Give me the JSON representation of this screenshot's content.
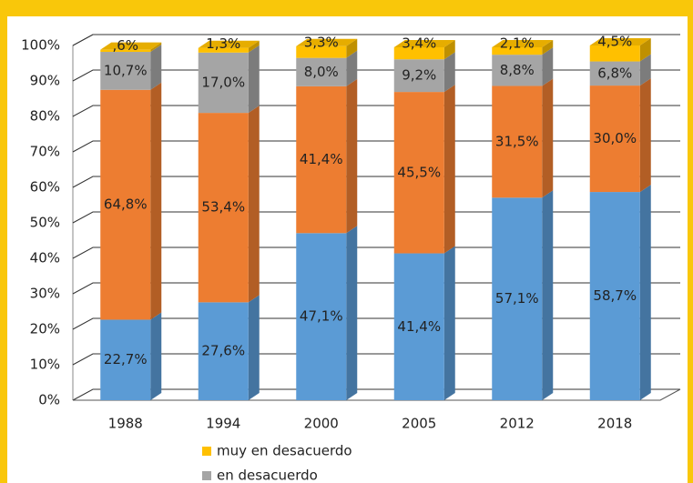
{
  "chart_data": {
    "type": "bar3d_stacked",
    "categories": [
      "1988",
      "1994",
      "2000",
      "2005",
      "2012",
      "2018"
    ],
    "series": [
      {
        "color": "#5b9bd5",
        "values": [
          22.7,
          27.6,
          47.1,
          41.4,
          57.1,
          58.7
        ],
        "value_labels": [
          "22,7%",
          "27,6%",
          "47,1%",
          "41,4%",
          "57,1%",
          "58,7%"
        ]
      },
      {
        "color": "#ed7d31",
        "values": [
          64.8,
          53.4,
          41.4,
          45.5,
          31.5,
          30.0
        ],
        "value_labels": [
          "64,8%",
          "53,4%",
          "41,4%",
          "45,5%",
          "31,5%",
          "30,0%"
        ]
      },
      {
        "name": "en desacuerdo",
        "color": "#a5a5a5",
        "values": [
          10.7,
          17.0,
          8.0,
          9.2,
          8.8,
          6.8
        ],
        "value_labels": [
          "10,7%",
          "17,0%",
          "8,0%",
          "9,2%",
          "8,8%",
          "6,8%"
        ]
      },
      {
        "name": "muy en desacuerdo",
        "color": "#ffc000",
        "values": [
          0.6,
          1.3,
          3.3,
          3.4,
          2.1,
          4.5
        ],
        "value_labels": [
          ",6%",
          "1,3%",
          "3,3%",
          "3,4%",
          "2,1%",
          "4,5%"
        ]
      }
    ],
    "ylim": [
      0,
      100
    ],
    "yticks": [
      {
        "value": 0,
        "label": "0%"
      },
      {
        "value": 10,
        "label": "10%"
      },
      {
        "value": 20,
        "label": "20%"
      },
      {
        "value": 30,
        "label": "30%"
      },
      {
        "value": 40,
        "label": "40%"
      },
      {
        "value": 50,
        "label": "50%"
      },
      {
        "value": 60,
        "label": "60%"
      },
      {
        "value": 70,
        "label": "70%"
      },
      {
        "value": 80,
        "label": "80%"
      },
      {
        "value": 90,
        "label": "90%"
      },
      {
        "value": 100,
        "label": "100%"
      }
    ],
    "grid": true
  }
}
